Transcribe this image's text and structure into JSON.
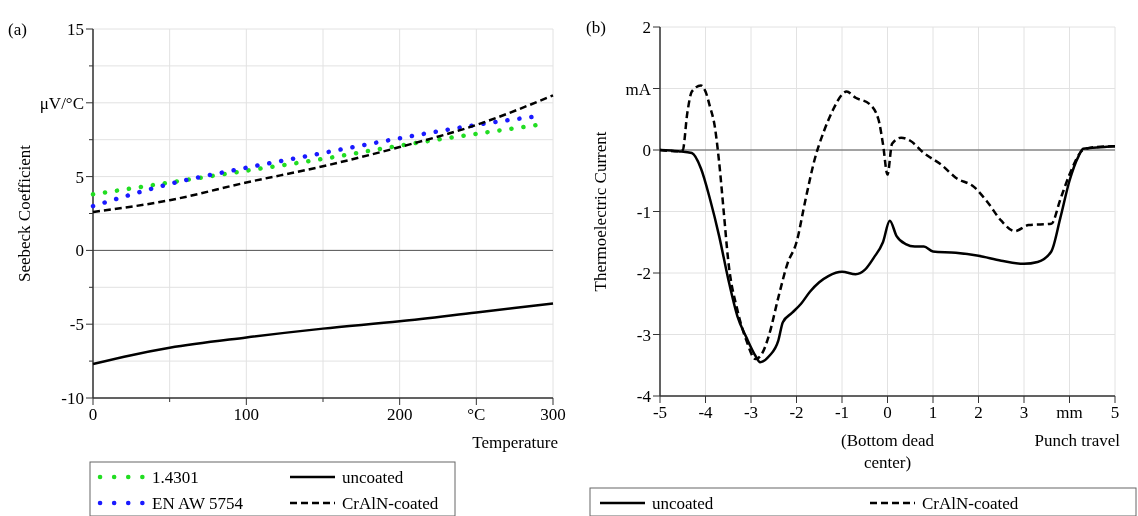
{
  "chart_data": [
    {
      "type": "line",
      "title": "(a)",
      "xlabel": "Temperature",
      "ylabel": "Seebeck Coefficient",
      "xlim": [
        0,
        300
      ],
      "ylim": [
        -10,
        15
      ],
      "xticks": [
        0,
        {
          "value": 50,
          "label": null
        },
        100,
        {
          "value": 150,
          "label": null
        },
        200,
        {
          "value": 250,
          "label": "°C"
        },
        300
      ],
      "yticks": [
        -10,
        {
          "value": -7.5,
          "label": null
        },
        -5,
        {
          "value": -2.5,
          "label": null
        },
        0,
        {
          "value": 2.5,
          "label": null
        },
        5,
        {
          "value": 7.5,
          "label": null
        },
        {
          "value": 10,
          "label": "μV/°C"
        },
        {
          "value": 12.5,
          "label": null
        },
        15
      ],
      "grid": true,
      "legend": "bottom",
      "ref_lines": [
        {
          "axis": "y",
          "value": 0,
          "color": "#555555"
        }
      ],
      "series": [
        {
          "name": "1.4301",
          "color": "#22dd22",
          "line_style": "dotted",
          "x": [
            0,
            50,
            100,
            150,
            200,
            250,
            290
          ],
          "values": [
            3.8,
            4.6,
            5.4,
            6.2,
            7.1,
            7.9,
            8.5
          ]
        },
        {
          "name": "EN AW 5754",
          "color": "#1a1aff",
          "line_style": "dotted",
          "x": [
            0,
            50,
            100,
            150,
            200,
            250,
            290
          ],
          "values": [
            3.0,
            4.5,
            5.6,
            6.6,
            7.6,
            8.5,
            9.1
          ]
        },
        {
          "name": "uncoated",
          "color": "#000000",
          "line_style": "solid",
          "x": [
            0,
            25,
            50,
            100,
            150,
            200,
            250,
            300
          ],
          "values": [
            -7.7,
            -7.1,
            -6.6,
            -5.9,
            -5.3,
            -4.8,
            -4.2,
            -3.6
          ]
        },
        {
          "name": "CrAlN-coated",
          "color": "#000000",
          "line_style": "dashed",
          "x": [
            0,
            50,
            100,
            150,
            200,
            250,
            300
          ],
          "values": [
            2.6,
            3.4,
            4.6,
            5.7,
            7.0,
            8.5,
            10.5
          ]
        }
      ]
    },
    {
      "type": "line",
      "title": "(b)",
      "xlabel": "Punch travel",
      "ylabel": "Thermoelectric Current",
      "xlim": [
        -5,
        5
      ],
      "ylim": [
        -4,
        2
      ],
      "xticks": [
        -5,
        -4,
        -3,
        -2,
        -1,
        0,
        1,
        2,
        3,
        {
          "value": 4,
          "label": "mm"
        },
        5
      ],
      "yticks": [
        -4,
        -3,
        -2,
        -1,
        0,
        {
          "value": 1,
          "label": "mA"
        },
        2
      ],
      "grid": true,
      "legend": "bottom",
      "ref_lines": [
        {
          "axis": "y",
          "value": 0,
          "color": "#555555"
        }
      ],
      "annotations": [
        "(Bottom dead center)"
      ],
      "series": [
        {
          "name": "uncoated",
          "color": "#000000",
          "line_style": "solid",
          "x": [
            -5,
            -4.6,
            -4.3,
            -4.1,
            -3.9,
            -3.7,
            -3.5,
            -3.3,
            -3.1,
            -2.9,
            -2.8,
            -2.6,
            -2.4,
            -2.3,
            -2.1,
            -1.9,
            -1.7,
            -1.5,
            -1.3,
            -1.0,
            -0.7,
            -0.5,
            -0.3,
            -0.1,
            0.05,
            0.2,
            0.4,
            0.6,
            0.8,
            1.0,
            1.5,
            2.0,
            2.5,
            3.0,
            3.3,
            3.6,
            3.8,
            4.0,
            4.2,
            4.3,
            4.6,
            5
          ],
          "values": [
            0,
            -0.02,
            -0.05,
            -0.3,
            -0.8,
            -1.4,
            -2.1,
            -2.7,
            -3.05,
            -3.35,
            -3.45,
            -3.35,
            -3.1,
            -2.8,
            -2.65,
            -2.5,
            -2.3,
            -2.15,
            -2.05,
            -1.98,
            -2.02,
            -1.95,
            -1.75,
            -1.5,
            -1.15,
            -1.4,
            -1.53,
            -1.57,
            -1.57,
            -1.65,
            -1.67,
            -1.72,
            -1.8,
            -1.85,
            -1.82,
            -1.65,
            -1.1,
            -0.5,
            -0.1,
            0.02,
            0.04,
            0.06
          ]
        },
        {
          "name": "CrAlN-coated",
          "color": "#000000",
          "line_style": "dashed",
          "x": [
            -5,
            -4.6,
            -4.5,
            -4.4,
            -4.3,
            -4.1,
            -4.0,
            -3.9,
            -3.8,
            -3.7,
            -3.6,
            -3.5,
            -3.3,
            -3.1,
            -2.9,
            -2.75,
            -2.6,
            -2.4,
            -2.2,
            -2.0,
            -1.8,
            -1.6,
            -1.4,
            -1.2,
            -1.0,
            -0.9,
            -0.7,
            -0.4,
            -0.2,
            -0.1,
            0,
            0.1,
            0.3,
            0.5,
            0.8,
            1.2,
            1.5,
            1.9,
            2.2,
            2.5,
            2.8,
            3.1,
            3.6,
            3.8,
            4.0,
            4.3,
            4.6,
            5
          ],
          "values": [
            0,
            -0.02,
            0,
            0.6,
            0.95,
            1.05,
            0.95,
            0.7,
            0.4,
            -0.2,
            -1.0,
            -1.8,
            -2.6,
            -3.1,
            -3.4,
            -3.3,
            -3.0,
            -2.4,
            -1.85,
            -1.5,
            -0.8,
            -0.15,
            0.3,
            0.65,
            0.9,
            0.95,
            0.85,
            0.75,
            0.5,
            0.1,
            -0.4,
            0.1,
            0.2,
            0.15,
            -0.05,
            -0.25,
            -0.45,
            -0.6,
            -0.85,
            -1.15,
            -1.32,
            -1.22,
            -1.2,
            -0.8,
            -0.4,
            0.0,
            0.05,
            0.06
          ]
        }
      ]
    }
  ]
}
